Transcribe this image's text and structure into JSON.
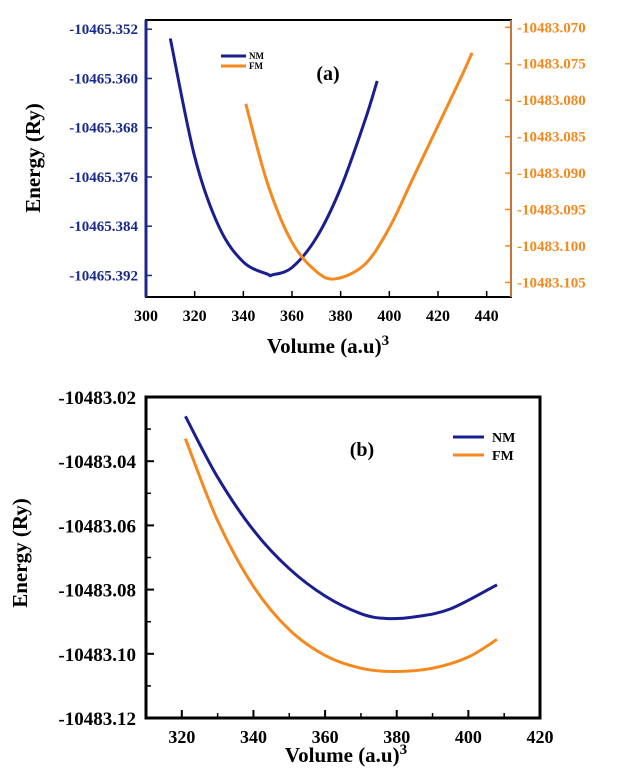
{
  "chart_data": [
    {
      "type": "line",
      "panel_label": "(a)",
      "xlabel": "Volume (a.u)",
      "xlabel_superscript": "3",
      "ylabel": "Energy (Ry)",
      "xlim": [
        300,
        450
      ],
      "x_ticks": [
        300,
        320,
        340,
        360,
        380,
        400,
        420,
        440
      ],
      "ylim_left": [
        -10465.3955,
        -10465.3505
      ],
      "y_ticks_left": [
        "-10465.352",
        "-10465.360",
        "-10465.368",
        "-10465.376",
        "-10465.384",
        "-10465.392"
      ],
      "y_tick_values_left": [
        -10465.352,
        -10465.36,
        -10465.368,
        -10465.376,
        -10465.384,
        -10465.392
      ],
      "ylim_right": [
        -10483.107,
        -10483.069
      ],
      "y_ticks_right": [
        "-10483.070",
        "-10483.075",
        "-10483.080",
        "-10483.085",
        "-10483.090",
        "-10483.095",
        "-10483.100",
        "-10483.105"
      ],
      "y_tick_values_right": [
        -10483.07,
        -10483.075,
        -10483.08,
        -10483.085,
        -10483.09,
        -10483.095,
        -10483.1,
        -10483.105
      ],
      "left_axis_color": "#1a2a8c",
      "right_axis_color": "#f5891e",
      "legend": {
        "placement": "top-left",
        "entries": [
          "NM",
          "FM"
        ]
      },
      "series": [
        {
          "name": "NM",
          "axis": "left",
          "color": "#1a1f8f",
          "x": [
            310,
            320,
            330,
            340,
            350,
            352,
            360,
            370,
            380,
            390,
            395
          ],
          "y": [
            -10465.3535,
            -10465.3727,
            -10465.3841,
            -10465.3898,
            -10465.3918,
            -10465.3919,
            -10465.3907,
            -10465.3859,
            -10465.3778,
            -10465.3668,
            -10465.3604
          ]
        },
        {
          "name": "FM",
          "axis": "right",
          "color": "#f5891e",
          "x": [
            341,
            350,
            360,
            370,
            378,
            390,
            400,
            410,
            420,
            430,
            434
          ],
          "y": [
            -10483.0805,
            -10483.0915,
            -10483.0995,
            -10483.1035,
            -10483.1045,
            -10483.1025,
            -10483.0975,
            -10483.0905,
            -10483.0835,
            -10483.0765,
            -10483.0735
          ]
        }
      ]
    },
    {
      "type": "line",
      "panel_label": "(b)",
      "xlabel": "Volume (a.u)",
      "xlabel_superscript": "3",
      "ylabel": "Energy (Ry)",
      "xlim": [
        310,
        420
      ],
      "x_ticks": [
        320,
        340,
        360,
        380,
        400,
        420
      ],
      "ylim": [
        -10483.12,
        -10483.02
      ],
      "y_ticks": [
        "-10483.02",
        "-10483.04",
        "-10483.06",
        "-10483.08",
        "-10483.10",
        "-10483.12"
      ],
      "y_tick_values": [
        -10483.02,
        -10483.04,
        -10483.06,
        -10483.08,
        -10483.1,
        -10483.12
      ],
      "legend": {
        "placement": "top-right",
        "entries": [
          "NM",
          "FM"
        ]
      },
      "series": [
        {
          "name": "NM",
          "color": "#1a1f8f",
          "x": [
            321,
            330,
            340,
            350,
            360,
            370,
            377,
            385,
            395,
            408
          ],
          "y": [
            -10483.026,
            -10483.045,
            -10483.0615,
            -10483.0735,
            -10483.082,
            -10483.0875,
            -10483.089,
            -10483.0885,
            -10483.086,
            -10483.0785
          ]
        },
        {
          "name": "FM",
          "color": "#f5891e",
          "x": [
            321,
            330,
            340,
            350,
            360,
            370,
            379,
            390,
            400,
            408
          ],
          "y": [
            -10483.033,
            -10483.0585,
            -10483.079,
            -10483.0925,
            -10483.1005,
            -10483.1045,
            -10483.1055,
            -10483.1045,
            -10483.101,
            -10483.0955
          ]
        }
      ]
    }
  ]
}
